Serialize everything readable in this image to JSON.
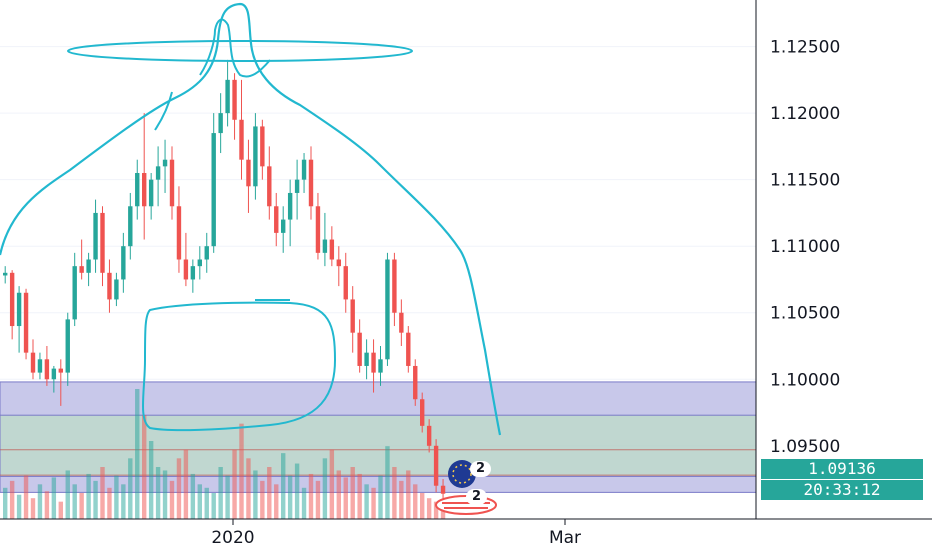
{
  "colors": {
    "up": "#26a69a",
    "down": "#ef5350",
    "zone_blue": "#9b9bd9",
    "zone_green": "#b9e3b9",
    "drawing": "#22b8cf",
    "price_tag": "#26a69a",
    "axis_line": "#131722",
    "grid": "#f0f3fa"
  },
  "price_axis": {
    "ticks": [
      "1.12500",
      "1.12000",
      "1.11500",
      "1.11000",
      "1.10500",
      "1.10000",
      "1.09500"
    ],
    "tick_values": [
      1.125,
      1.12,
      1.115,
      1.11,
      1.105,
      1.1,
      1.095
    ]
  },
  "time_axis": {
    "labels": [
      "2020",
      "Mar"
    ]
  },
  "last_price": "1.09136",
  "countdown": "20:33:12",
  "events": {
    "eu_count": "2",
    "us_count": "2"
  },
  "zones": [
    {
      "name": "blue-zone",
      "from": 1.0915,
      "to": 1.0998
    },
    {
      "name": "green-zone",
      "from": 1.0927,
      "to": 1.0973
    }
  ],
  "reference_lines": [
    1.0947,
    1.0928
  ],
  "chart_data": {
    "type": "candlestick",
    "symbol_note": "",
    "ohlc": [
      [
        1.1078,
        1.1085,
        1.1072,
        1.108
      ],
      [
        1.108,
        1.1082,
        1.103,
        1.104
      ],
      [
        1.104,
        1.107,
        1.102,
        1.1065
      ],
      [
        1.1065,
        1.1068,
        1.1015,
        1.102
      ],
      [
        1.102,
        1.103,
        1.1,
        1.1005
      ],
      [
        1.1005,
        1.102,
        1.1,
        1.1015
      ],
      [
        1.1015,
        1.1025,
        1.0995,
        1.1
      ],
      [
        1.1,
        1.101,
        1.099,
        1.1008
      ],
      [
        1.1008,
        1.1015,
        1.098,
        1.1005
      ],
      [
        1.1005,
        1.105,
        1.0995,
        1.1045
      ],
      [
        1.1045,
        1.1095,
        1.104,
        1.1085
      ],
      [
        1.1085,
        1.1105,
        1.1075,
        1.108
      ],
      [
        1.108,
        1.1095,
        1.107,
        1.109
      ],
      [
        1.109,
        1.1135,
        1.108,
        1.1125
      ],
      [
        1.1125,
        1.113,
        1.107,
        1.108
      ],
      [
        1.108,
        1.109,
        1.105,
        1.106
      ],
      [
        1.106,
        1.108,
        1.1055,
        1.1075
      ],
      [
        1.1075,
        1.111,
        1.1065,
        1.11
      ],
      [
        1.11,
        1.114,
        1.109,
        1.113
      ],
      [
        1.113,
        1.1165,
        1.112,
        1.1155
      ],
      [
        1.1155,
        1.12,
        1.1105,
        1.113
      ],
      [
        1.113,
        1.1155,
        1.112,
        1.115
      ],
      [
        1.115,
        1.1175,
        1.113,
        1.116
      ],
      [
        1.116,
        1.118,
        1.114,
        1.1165
      ],
      [
        1.1165,
        1.1175,
        1.112,
        1.113
      ],
      [
        1.113,
        1.1145,
        1.108,
        1.109
      ],
      [
        1.109,
        1.111,
        1.107,
        1.1075
      ],
      [
        1.1075,
        1.109,
        1.1065,
        1.1085
      ],
      [
        1.1085,
        1.11,
        1.1075,
        1.109
      ],
      [
        1.109,
        1.111,
        1.108,
        1.11
      ],
      [
        1.11,
        1.12,
        1.1095,
        1.1185
      ],
      [
        1.1185,
        1.1215,
        1.117,
        1.12
      ],
      [
        1.12,
        1.124,
        1.119,
        1.1225
      ],
      [
        1.1225,
        1.123,
        1.118,
        1.1195
      ],
      [
        1.1195,
        1.1225,
        1.115,
        1.1165
      ],
      [
        1.1165,
        1.118,
        1.1125,
        1.1145
      ],
      [
        1.1145,
        1.12,
        1.1135,
        1.119
      ],
      [
        1.119,
        1.1195,
        1.115,
        1.116
      ],
      [
        1.116,
        1.1175,
        1.112,
        1.113
      ],
      [
        1.113,
        1.114,
        1.11,
        1.111
      ],
      [
        1.111,
        1.113,
        1.1095,
        1.112
      ],
      [
        1.112,
        1.115,
        1.11,
        1.114
      ],
      [
        1.114,
        1.1165,
        1.112,
        1.115
      ],
      [
        1.115,
        1.117,
        1.114,
        1.1165
      ],
      [
        1.1165,
        1.1175,
        1.112,
        1.113
      ],
      [
        1.113,
        1.114,
        1.109,
        1.1095
      ],
      [
        1.1095,
        1.1125,
        1.1085,
        1.1105
      ],
      [
        1.1105,
        1.1115,
        1.1085,
        1.109
      ],
      [
        1.109,
        1.11,
        1.107,
        1.1085
      ],
      [
        1.1085,
        1.1095,
        1.105,
        1.106
      ],
      [
        1.106,
        1.107,
        1.102,
        1.1035
      ],
      [
        1.1035,
        1.1045,
        1.1005,
        1.101
      ],
      [
        1.101,
        1.103,
        1.1,
        1.102
      ],
      [
        1.102,
        1.103,
        1.099,
        1.1005
      ],
      [
        1.1005,
        1.1025,
        1.0995,
        1.1015
      ],
      [
        1.1015,
        1.1095,
        1.101,
        1.109
      ],
      [
        1.109,
        1.1095,
        1.104,
        1.105
      ],
      [
        1.105,
        1.106,
        1.1025,
        1.1035
      ],
      [
        1.1035,
        1.104,
        1.1005,
        1.101
      ],
      [
        1.101,
        1.1015,
        1.098,
        1.0985
      ],
      [
        1.0985,
        1.099,
        1.096,
        1.0965
      ],
      [
        1.0965,
        1.097,
        1.0945,
        1.095
      ],
      [
        1.095,
        1.0955,
        1.0915,
        1.092
      ],
      [
        1.092,
        1.0925,
        1.0905,
        1.0914
      ]
    ],
    "volume": [
      18,
      22,
      14,
      25,
      12,
      20,
      16,
      24,
      10,
      28,
      20,
      15,
      26,
      22,
      30,
      18,
      25,
      20,
      35,
      75,
      60,
      45,
      30,
      28,
      22,
      35,
      40,
      26,
      20,
      18,
      15,
      30,
      25,
      40,
      55,
      35,
      28,
      22,
      30,
      20,
      38,
      25,
      32,
      18,
      26,
      22,
      35,
      40,
      28,
      24,
      30,
      26,
      20,
      18,
      25,
      42,
      30,
      22,
      28,
      20,
      15,
      12,
      10,
      8
    ],
    "ylim": [
      1.0895,
      1.1285
    ],
    "x_labels": [
      "2020",
      "Mar"
    ]
  }
}
